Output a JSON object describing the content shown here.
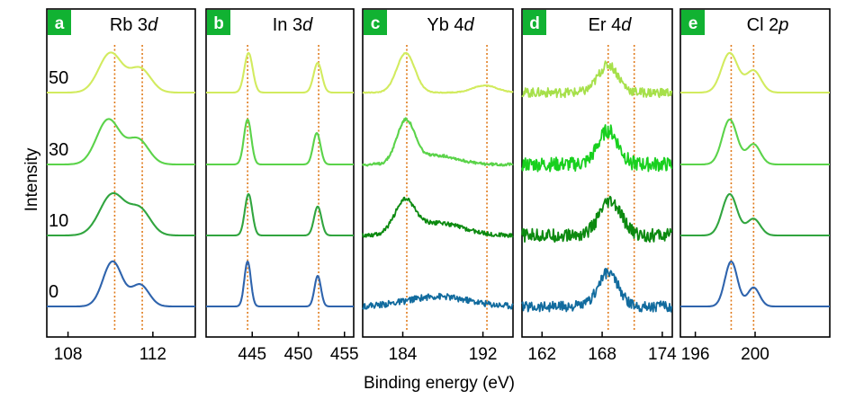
{
  "figure": {
    "xlabel": "Binding energy (eV)",
    "ylabel": "Intensity",
    "offset_labels": [
      "50",
      "30",
      "10",
      "0"
    ]
  },
  "style": {
    "series_colors": [
      "#d2eb5f",
      "#5bd34a",
      "#31a53f",
      "#2f64ad"
    ],
    "noisy_colors": [
      "#a6e04a",
      "#18d01e",
      "#0c8a10",
      "#116b9e"
    ],
    "badge_color": "#11b232",
    "guide_color": "#e07a1a",
    "frame_color": "#000000"
  },
  "chart_data": [
    {
      "type": "line",
      "panel": "a",
      "element": "Rb",
      "orbital": "3",
      "orbital_italic": "d",
      "xlim": [
        107,
        114
      ],
      "xticks": [
        108,
        112
      ],
      "guides": [
        110.2,
        111.5
      ],
      "series": [
        {
          "name": "50",
          "peaks": [
            [
              110.0,
              1.0,
              0.55
            ],
            [
              111.4,
              0.6,
              0.5
            ]
          ],
          "noise": 0
        },
        {
          "name": "30",
          "peaks": [
            [
              109.9,
              1.0,
              0.55
            ],
            [
              111.3,
              0.55,
              0.5
            ]
          ],
          "noise": 0
        },
        {
          "name": "10",
          "peaks": [
            [
              110.1,
              1.0,
              0.6
            ],
            [
              111.4,
              0.6,
              0.5
            ]
          ],
          "noise": 0
        },
        {
          "name": "0",
          "peaks": [
            [
              110.1,
              1.0,
              0.45
            ],
            [
              111.4,
              0.48,
              0.42
            ]
          ],
          "noise": 0
        }
      ]
    },
    {
      "type": "line",
      "panel": "b",
      "element": "In",
      "orbital": "3",
      "orbital_italic": "d",
      "xlim": [
        440,
        456
      ],
      "xticks": [
        445,
        450,
        455
      ],
      "guides": [
        444.5,
        452.2
      ],
      "series": [
        {
          "name": "50",
          "peaks": [
            [
              444.6,
              1.0,
              0.45
            ],
            [
              452.1,
              0.75,
              0.45
            ]
          ],
          "noise": 0
        },
        {
          "name": "30",
          "peaks": [
            [
              444.5,
              1.0,
              0.4
            ],
            [
              452.0,
              0.7,
              0.4
            ]
          ],
          "noise": 0
        },
        {
          "name": "10",
          "peaks": [
            [
              444.6,
              1.0,
              0.4
            ],
            [
              452.1,
              0.7,
              0.4
            ]
          ],
          "noise": 0
        },
        {
          "name": "0",
          "peaks": [
            [
              444.5,
              1.0,
              0.35
            ],
            [
              452.1,
              0.68,
              0.35
            ]
          ],
          "noise": 0
        }
      ]
    },
    {
      "type": "line",
      "panel": "c",
      "element": "Yb",
      "orbital": "4",
      "orbital_italic": "d",
      "xlim": [
        180,
        195
      ],
      "xticks": [
        184,
        192
      ],
      "guides": [
        184.4,
        192.4
      ],
      "series": [
        {
          "name": "50",
          "peaks": [
            [
              184.3,
              1.0,
              0.9
            ],
            [
              192.2,
              0.18,
              1.2
            ]
          ],
          "noise": 0.01
        },
        {
          "name": "30",
          "peaks": [
            [
              184.3,
              0.95,
              0.9
            ],
            [
              187.5,
              0.2,
              2.0
            ]
          ],
          "noise": 0.03
        },
        {
          "name": "10",
          "peaks": [
            [
              184.2,
              0.75,
              1.0
            ],
            [
              187.5,
              0.3,
              2.5
            ]
          ],
          "noise": 0.05
        },
        {
          "name": "0",
          "peaks": [
            [
              187.5,
              0.22,
              3.0
            ]
          ],
          "noise": 0.07
        }
      ]
    },
    {
      "type": "line",
      "panel": "d",
      "element": "Er",
      "orbital": "4",
      "orbital_italic": "d",
      "xlim": [
        160,
        175
      ],
      "xticks": [
        162,
        168,
        174
      ],
      "guides": [
        168.6,
        171.2
      ],
      "series": [
        {
          "name": "50",
          "peaks": [
            [
              168.6,
              0.7,
              1.0
            ]
          ],
          "noise": 0.12
        },
        {
          "name": "30",
          "peaks": [
            [
              168.6,
              0.75,
              1.0
            ]
          ],
          "noise": 0.16
        },
        {
          "name": "10",
          "peaks": [
            [
              168.8,
              0.8,
              1.1
            ]
          ],
          "noise": 0.16
        },
        {
          "name": "0",
          "peaks": [
            [
              168.6,
              0.75,
              1.0
            ]
          ],
          "noise": 0.12
        }
      ]
    },
    {
      "type": "line",
      "panel": "e",
      "element": "Cl",
      "orbital": "2",
      "orbital_italic": "p",
      "xlim": [
        195,
        205
      ],
      "xticks": [
        196,
        200
      ],
      "guides": [
        198.4,
        199.9
      ],
      "series": [
        {
          "name": "50",
          "peaks": [
            [
              198.3,
              1.0,
              0.55
            ],
            [
              199.9,
              0.55,
              0.5
            ]
          ],
          "noise": 0
        },
        {
          "name": "30",
          "peaks": [
            [
              198.3,
              1.0,
              0.5
            ],
            [
              199.9,
              0.45,
              0.45
            ]
          ],
          "noise": 0
        },
        {
          "name": "10",
          "peaks": [
            [
              198.3,
              1.0,
              0.5
            ],
            [
              199.9,
              0.4,
              0.45
            ]
          ],
          "noise": 0
        },
        {
          "name": "0",
          "peaks": [
            [
              198.4,
              1.0,
              0.42
            ],
            [
              199.9,
              0.42,
              0.4
            ]
          ],
          "noise": 0
        }
      ]
    }
  ]
}
